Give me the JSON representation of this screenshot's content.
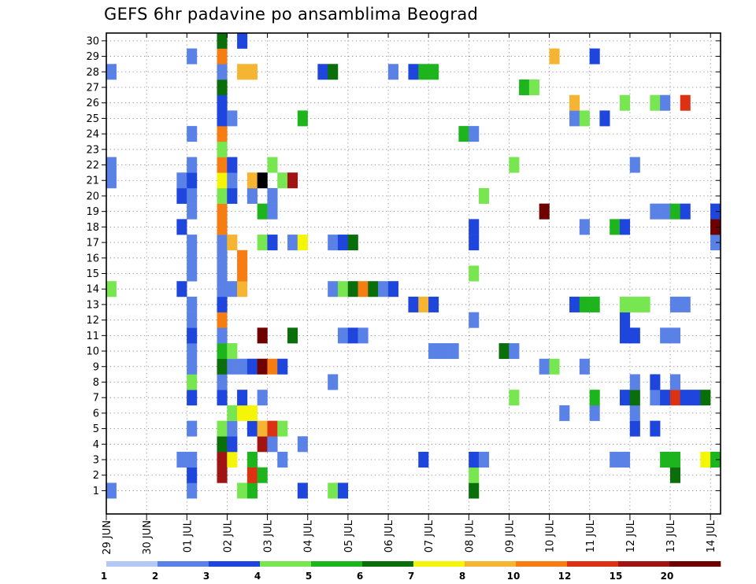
{
  "chart_data": {
    "type": "heatmap",
    "title": "GEFS 6hr padavine po ansamblima Beograd",
    "xlabel": "",
    "ylabel": "",
    "members": [
      1,
      2,
      3,
      4,
      5,
      6,
      7,
      8,
      9,
      10,
      11,
      12,
      13,
      14,
      15,
      16,
      17,
      18,
      19,
      20,
      21,
      22,
      23,
      24,
      25,
      26,
      27,
      28,
      29,
      30
    ],
    "step_hours": 6,
    "x_steps": 61,
    "x_tick_labels": [
      {
        "step": 0,
        "label": "29 JUN"
      },
      {
        "step": 4,
        "label": "30 JUN"
      },
      {
        "step": 8,
        "label": "01 JUL"
      },
      {
        "step": 12,
        "label": "02 JUL"
      },
      {
        "step": 16,
        "label": "03 JUL"
      },
      {
        "step": 20,
        "label": "04 JUL"
      },
      {
        "step": 24,
        "label": "05 JUL"
      },
      {
        "step": 28,
        "label": "06 JUL"
      },
      {
        "step": 32,
        "label": "07 JUL"
      },
      {
        "step": 36,
        "label": "08 JUL"
      },
      {
        "step": 40,
        "label": "09 JUL"
      },
      {
        "step": 44,
        "label": "10 JUL"
      },
      {
        "step": 48,
        "label": "11 JUL"
      },
      {
        "step": 52,
        "label": "12 JUL"
      },
      {
        "step": 56,
        "label": "13 JUL"
      },
      {
        "step": 60,
        "label": "14 JUL"
      }
    ],
    "legend": {
      "placement": "bottom",
      "thresholds": [
        "1",
        "2",
        "3",
        "4",
        "5",
        "6",
        "7",
        "8",
        "10",
        "12",
        "15",
        "20"
      ],
      "colors": [
        "#b4c8f5",
        "#5a82e6",
        "#1e46dc",
        "#78e650",
        "#1eb41e",
        "#0a6e0a",
        "#f5f50a",
        "#f5b432",
        "#f57d14",
        "#dc3214",
        "#a01414",
        "#6e0000"
      ]
    },
    "grid": true,
    "cells": [
      [
        1,
        0,
        1
      ],
      [
        1,
        8,
        1
      ],
      [
        1,
        13,
        3
      ],
      [
        1,
        14,
        4
      ],
      [
        1,
        19,
        2
      ],
      [
        1,
        22,
        3
      ],
      [
        1,
        23,
        2
      ],
      [
        1,
        36,
        5
      ],
      [
        2,
        8,
        2
      ],
      [
        2,
        11,
        10
      ],
      [
        2,
        14,
        9
      ],
      [
        2,
        15,
        4
      ],
      [
        2,
        36,
        3
      ],
      [
        2,
        56,
        5
      ],
      [
        3,
        7,
        1
      ],
      [
        3,
        8,
        1
      ],
      [
        3,
        11,
        10
      ],
      [
        3,
        12,
        6
      ],
      [
        3,
        14,
        4
      ],
      [
        3,
        17,
        1
      ],
      [
        3,
        31,
        2
      ],
      [
        3,
        36,
        2
      ],
      [
        3,
        37,
        1
      ],
      [
        3,
        50,
        1
      ],
      [
        3,
        51,
        1
      ],
      [
        3,
        55,
        4
      ],
      [
        3,
        56,
        4
      ],
      [
        3,
        59,
        6
      ],
      [
        3,
        60,
        4
      ],
      [
        4,
        11,
        5
      ],
      [
        4,
        12,
        2
      ],
      [
        4,
        15,
        10
      ],
      [
        4,
        16,
        1
      ],
      [
        4,
        19,
        1
      ],
      [
        5,
        8,
        1
      ],
      [
        5,
        11,
        3
      ],
      [
        5,
        12,
        1
      ],
      [
        5,
        14,
        2
      ],
      [
        5,
        15,
        7
      ],
      [
        5,
        16,
        9
      ],
      [
        5,
        17,
        3
      ],
      [
        5,
        52,
        2
      ],
      [
        5,
        54,
        2
      ],
      [
        6,
        12,
        3
      ],
      [
        6,
        13,
        6
      ],
      [
        6,
        14,
        6
      ],
      [
        6,
        45,
        1
      ],
      [
        6,
        48,
        1
      ],
      [
        6,
        52,
        1
      ],
      [
        7,
        8,
        2
      ],
      [
        7,
        11,
        2
      ],
      [
        7,
        13,
        2
      ],
      [
        7,
        15,
        1
      ],
      [
        7,
        40,
        3
      ],
      [
        7,
        48,
        4
      ],
      [
        7,
        51,
        2
      ],
      [
        7,
        52,
        5
      ],
      [
        7,
        54,
        1
      ],
      [
        7,
        55,
        2
      ],
      [
        7,
        56,
        9
      ],
      [
        7,
        57,
        2
      ],
      [
        7,
        58,
        2
      ],
      [
        7,
        59,
        5
      ],
      [
        8,
        8,
        3
      ],
      [
        8,
        11,
        1
      ],
      [
        8,
        22,
        1
      ],
      [
        8,
        52,
        1
      ],
      [
        8,
        54,
        2
      ],
      [
        8,
        56,
        1
      ],
      [
        9,
        8,
        1
      ],
      [
        9,
        11,
        5
      ],
      [
        9,
        12,
        1
      ],
      [
        9,
        13,
        1
      ],
      [
        9,
        14,
        2
      ],
      [
        9,
        15,
        11
      ],
      [
        9,
        16,
        8
      ],
      [
        9,
        17,
        2
      ],
      [
        9,
        43,
        1
      ],
      [
        9,
        44,
        3
      ],
      [
        9,
        47,
        1
      ],
      [
        10,
        8,
        1
      ],
      [
        10,
        11,
        4
      ],
      [
        10,
        12,
        3
      ],
      [
        10,
        32,
        1
      ],
      [
        10,
        33,
        1
      ],
      [
        10,
        34,
        1
      ],
      [
        10,
        39,
        5
      ],
      [
        10,
        40,
        1
      ],
      [
        11,
        8,
        2
      ],
      [
        11,
        11,
        1
      ],
      [
        11,
        15,
        11
      ],
      [
        11,
        18,
        5
      ],
      [
        11,
        23,
        1
      ],
      [
        11,
        24,
        2
      ],
      [
        11,
        25,
        1
      ],
      [
        11,
        51,
        2
      ],
      [
        11,
        52,
        2
      ],
      [
        11,
        55,
        1
      ],
      [
        11,
        56,
        1
      ],
      [
        12,
        8,
        1
      ],
      [
        12,
        11,
        8
      ],
      [
        12,
        36,
        1
      ],
      [
        12,
        51,
        2
      ],
      [
        13,
        8,
        1
      ],
      [
        13,
        11,
        2
      ],
      [
        13,
        30,
        2
      ],
      [
        13,
        31,
        7
      ],
      [
        13,
        32,
        2
      ],
      [
        13,
        46,
        2
      ],
      [
        13,
        47,
        4
      ],
      [
        13,
        48,
        4
      ],
      [
        13,
        51,
        3
      ],
      [
        13,
        52,
        3
      ],
      [
        13,
        53,
        3
      ],
      [
        13,
        56,
        1
      ],
      [
        13,
        57,
        1
      ],
      [
        14,
        0,
        3
      ],
      [
        14,
        7,
        2
      ],
      [
        14,
        11,
        1
      ],
      [
        14,
        12,
        1
      ],
      [
        14,
        13,
        7
      ],
      [
        14,
        22,
        1
      ],
      [
        14,
        23,
        3
      ],
      [
        14,
        24,
        5
      ],
      [
        14,
        25,
        8
      ],
      [
        14,
        26,
        5
      ],
      [
        14,
        27,
        1
      ],
      [
        14,
        28,
        2
      ],
      [
        15,
        8,
        1
      ],
      [
        15,
        11,
        1
      ],
      [
        15,
        13,
        8
      ],
      [
        15,
        36,
        3
      ],
      [
        16,
        8,
        1
      ],
      [
        16,
        11,
        1
      ],
      [
        16,
        13,
        8
      ],
      [
        17,
        8,
        1
      ],
      [
        17,
        11,
        1
      ],
      [
        17,
        12,
        7
      ],
      [
        17,
        15,
        3
      ],
      [
        17,
        16,
        2
      ],
      [
        17,
        18,
        1
      ],
      [
        17,
        19,
        6
      ],
      [
        17,
        22,
        1
      ],
      [
        17,
        23,
        2
      ],
      [
        17,
        24,
        5
      ],
      [
        17,
        36,
        2
      ],
      [
        17,
        60,
        1
      ],
      [
        18,
        7,
        2
      ],
      [
        18,
        11,
        8
      ],
      [
        18,
        36,
        2
      ],
      [
        18,
        47,
        1
      ],
      [
        18,
        50,
        4
      ],
      [
        18,
        51,
        2
      ],
      [
        18,
        60,
        11
      ],
      [
        19,
        8,
        1
      ],
      [
        19,
        11,
        8
      ],
      [
        19,
        15,
        4
      ],
      [
        19,
        16,
        1
      ],
      [
        19,
        43,
        11
      ],
      [
        19,
        54,
        1
      ],
      [
        19,
        55,
        1
      ],
      [
        19,
        56,
        4
      ],
      [
        19,
        57,
        2
      ],
      [
        19,
        60,
        2
      ],
      [
        20,
        7,
        2
      ],
      [
        20,
        8,
        1
      ],
      [
        20,
        11,
        3
      ],
      [
        20,
        12,
        2
      ],
      [
        20,
        14,
        1
      ],
      [
        20,
        16,
        1
      ],
      [
        20,
        37,
        3
      ],
      [
        21,
        0,
        1
      ],
      [
        21,
        7,
        1
      ],
      [
        21,
        8,
        2
      ],
      [
        21,
        11,
        6
      ],
      [
        21,
        12,
        1
      ],
      [
        21,
        14,
        7
      ],
      [
        21,
        15,
        12
      ],
      [
        21,
        17,
        3
      ],
      [
        21,
        18,
        10
      ],
      [
        22,
        0,
        1
      ],
      [
        22,
        8,
        1
      ],
      [
        22,
        11,
        8
      ],
      [
        22,
        12,
        2
      ],
      [
        22,
        16,
        3
      ],
      [
        22,
        40,
        3
      ],
      [
        22,
        52,
        1
      ],
      [
        23,
        11,
        3
      ],
      [
        24,
        8,
        1
      ],
      [
        24,
        11,
        8
      ],
      [
        24,
        35,
        4
      ],
      [
        24,
        36,
        1
      ],
      [
        25,
        11,
        2
      ],
      [
        25,
        12,
        1
      ],
      [
        25,
        19,
        4
      ],
      [
        25,
        46,
        1
      ],
      [
        25,
        47,
        3
      ],
      [
        25,
        49,
        2
      ],
      [
        26,
        11,
        2
      ],
      [
        26,
        46,
        7
      ],
      [
        26,
        51,
        3
      ],
      [
        26,
        54,
        3
      ],
      [
        26,
        55,
        1
      ],
      [
        26,
        57,
        9
      ],
      [
        27,
        11,
        5
      ],
      [
        27,
        41,
        4
      ],
      [
        27,
        42,
        3
      ],
      [
        28,
        0,
        1
      ],
      [
        28,
        11,
        1
      ],
      [
        28,
        13,
        7
      ],
      [
        28,
        14,
        7
      ],
      [
        28,
        21,
        2
      ],
      [
        28,
        22,
        5
      ],
      [
        28,
        28,
        1
      ],
      [
        28,
        30,
        2
      ],
      [
        28,
        31,
        4
      ],
      [
        28,
        32,
        4
      ],
      [
        29,
        8,
        1
      ],
      [
        29,
        11,
        8
      ],
      [
        29,
        44,
        7
      ],
      [
        29,
        48,
        2
      ],
      [
        30,
        11,
        5
      ],
      [
        30,
        13,
        2
      ]
    ]
  }
}
